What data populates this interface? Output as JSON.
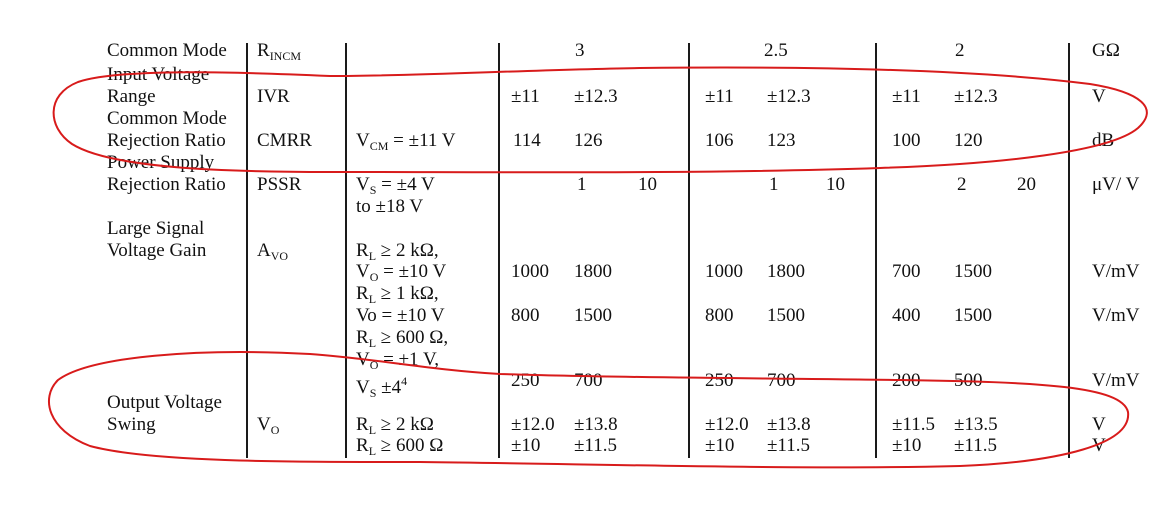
{
  "rows": {
    "r0": {
      "param": "Common Mode",
      "sym": "R",
      "sym_sub": "INCM",
      "v1": "3",
      "v2": "2.5",
      "v3": "2",
      "unit": "GΩ"
    },
    "r1": {
      "param1": "Input Voltage",
      "param2": "Range",
      "sym": "IVR",
      "c1a": "±11",
      "c1b": "±12.3",
      "c2a": "±11",
      "c2b": "±12.3",
      "c3a": "±11",
      "c3b": "±12.3",
      "unit": "V"
    },
    "r2": {
      "param1": "Common Mode",
      "param2": "Rejection Ratio",
      "sym": "CMRR",
      "cond_pre": "V",
      "cond_sub": "CM",
      "cond_post": " = ±11 V",
      "c1a": "114",
      "c1b": "126",
      "c2a": "106",
      "c2b": "123",
      "c3a": "100",
      "c3b": "120",
      "unit": "dB"
    },
    "r3": {
      "param1": "Power Supply",
      "param2": "Rejection Ratio",
      "sym": "PSSR",
      "cond1_pre": "V",
      "cond1_sub": "S",
      "cond1_post": " = ±4 V",
      "cond2": "to ±18 V",
      "c1b": "1",
      "c1c": "10",
      "c2b": "1",
      "c2c": "10",
      "c3b": "2",
      "c3c": "20",
      "unit": "μV/ V"
    },
    "r4": {
      "param1": "Large Signal",
      "param2": "Voltage Gain",
      "sym_pre": "A",
      "sym_sub": "VO",
      "l1_pre": "R",
      "l1_sub": "L",
      "l1_post": " ≥ 2 kΩ,",
      "l2_pre": "V",
      "l2_sub": "O",
      "l2_post": " = ±10 V",
      "l2_c1a": "1000",
      "l2_c1b": "1800",
      "l2_c2a": "1000",
      "l2_c2b": "1800",
      "l2_c3a": "700",
      "l2_c3b": "1500",
      "l2_unit": "V/mV",
      "l3_pre": "R",
      "l3_sub": "L",
      "l3_post": " ≥ 1 kΩ,",
      "l4_pre": "Vo",
      "l4_post": " = ±10 V",
      "l4_c1a": "800",
      "l4_c1b": "1500",
      "l4_c2a": "800",
      "l4_c2b": "1500",
      "l4_c3a": "400",
      "l4_c3b": "1500",
      "l4_unit": "V/mV",
      "l5_pre": "R",
      "l5_sub": "L",
      "l5_post": " ≥ 600 Ω,",
      "l6_pre": "V",
      "l6_sub": "O",
      "l6_post": " = ±1 V,",
      "l7_pre": "V",
      "l7_sub": "S",
      "l7_post": " ±4",
      "l7_sup": "4",
      "l7_c1a": "250",
      "l7_c1b": "700",
      "l7_c2a": "250",
      "l7_c2b": "700",
      "l7_c3a": "200",
      "l7_c3b": "500",
      "l7_unit": "V/mV"
    },
    "r5": {
      "param1": "Output Voltage",
      "param2": "Swing",
      "sym_pre": "V",
      "sym_sub": "O",
      "l1_pre": "R",
      "l1_sub": "L",
      "l1_post": " ≥ 2 kΩ",
      "l1_c1a": "±12.0",
      "l1_c1b": "±13.8",
      "l1_c2a": "±12.0",
      "l1_c2b": "±13.8",
      "l1_c3a": "±11.5",
      "l1_c3b": "±13.5",
      "l1_unit": "V",
      "l2_pre": "R",
      "l2_sub": "L",
      "l2_post": " ≥ 600 Ω",
      "l2_c1a": "±10",
      "l2_c1b": "±11.5",
      "l2_c2a": "±10",
      "l2_c2b": "±11.5",
      "l2_c3a": "±10",
      "l2_c3b": "±11.5",
      "l2_unit": "V"
    }
  },
  "annotation": {
    "color": "#d81b1b"
  }
}
